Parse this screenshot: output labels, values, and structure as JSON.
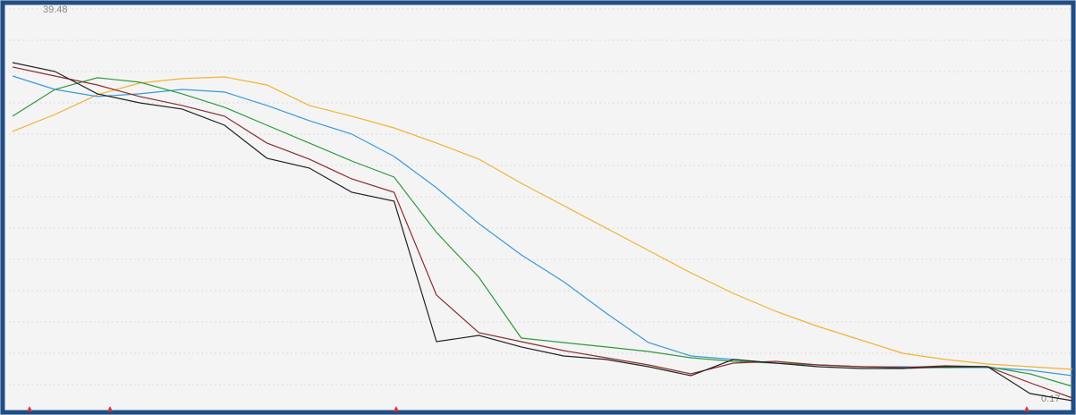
{
  "chart_data": {
    "type": "line",
    "annotations": [
      "39.48",
      "0.17"
    ],
    "x": [
      0,
      1,
      2,
      3,
      4,
      5,
      6,
      7,
      8,
      9,
      10,
      11,
      12,
      13,
      14,
      15,
      16,
      17,
      18,
      19,
      20,
      21,
      22,
      23,
      24,
      25
    ],
    "xlim": [
      0,
      25
    ],
    "ylim": [
      0,
      40
    ],
    "series": [
      {
        "name": null,
        "color": "#f2b233",
        "values": [
          27.15,
          28.84,
          30.81,
          31.97,
          32.42,
          32.59,
          31.79,
          29.74,
          28.67,
          27.5,
          25.99,
          24.38,
          21.97,
          19.74,
          17.5,
          15.27,
          13.04,
          10.98,
          9.2,
          7.68,
          6.34,
          5.0,
          4.38,
          3.93,
          3.66,
          3.39
        ]
      },
      {
        "name": null,
        "color": "#3a9ad9",
        "values": [
          32.68,
          31.34,
          30.63,
          30.9,
          31.34,
          31.08,
          29.74,
          28.22,
          26.88,
          24.65,
          21.52,
          17.95,
          14.82,
          12.14,
          9.02,
          6.07,
          4.73,
          4.38,
          4.02,
          3.84,
          3.66,
          3.66,
          3.57,
          3.57,
          3.3,
          2.77
        ]
      },
      {
        "name": null,
        "color": "#2e9a3e",
        "values": [
          28.67,
          31.34,
          32.51,
          32.06,
          30.9,
          29.56,
          27.77,
          25.99,
          24.2,
          22.59,
          17.06,
          12.59,
          6.52,
          6.07,
          5.63,
          5.18,
          4.55,
          4.2,
          4.02,
          3.84,
          3.66,
          3.57,
          3.57,
          3.66,
          2.95,
          1.7
        ]
      },
      {
        "name": null,
        "color": "#8b2d2d",
        "values": [
          33.58,
          32.68,
          31.79,
          30.63,
          29.74,
          28.67,
          25.99,
          24.38,
          22.41,
          21.07,
          10.81,
          7.05,
          6.16,
          5.27,
          4.55,
          3.84,
          2.95,
          4.02,
          4.2,
          3.84,
          3.66,
          3.57,
          3.75,
          3.66,
          2.05,
          0.54
        ]
      },
      {
        "name": null,
        "color": "#222222",
        "values": [
          34.02,
          33.13,
          30.9,
          30.0,
          29.38,
          27.77,
          24.47,
          23.49,
          21.08,
          20.19,
          6.16,
          6.79,
          5.63,
          4.73,
          4.38,
          3.66,
          2.77,
          4.38,
          4.02,
          3.66,
          3.48,
          3.48,
          3.66,
          3.66,
          0.98,
          0.27
        ]
      }
    ]
  }
}
